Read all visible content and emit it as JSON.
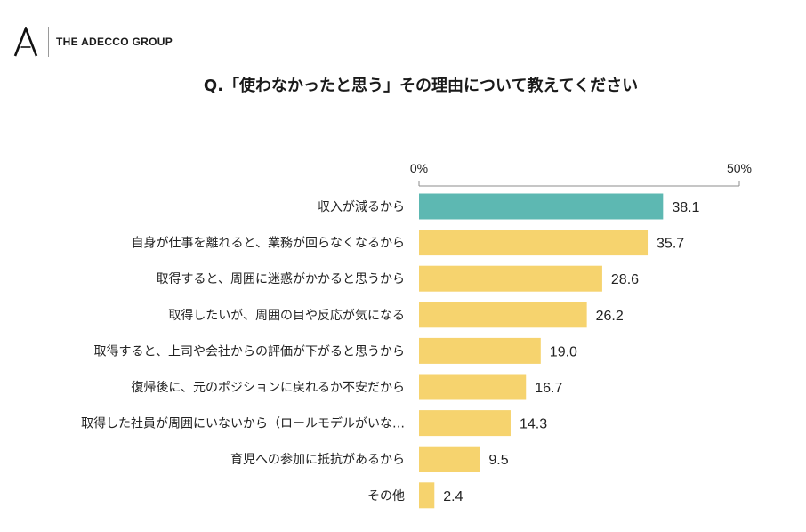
{
  "brand": {
    "name": "THE ADECCO GROUP",
    "logo_icon": "adecco-a-logo-icon"
  },
  "chart_data": {
    "type": "bar",
    "orientation": "horizontal",
    "title": "Q.「使わなかったと思う」その理由について教えてください",
    "categories": [
      "収入が減るから",
      "自身が仕事を離れると、業務が回らなくなるから",
      "取得すると、周囲に迷惑がかかると思うから",
      "取得したいが、周囲の目や反応が気になる",
      "取得すると、上司や会社からの評価が下がると思うから",
      "復帰後に、元のポジションに戻れるか不安だから",
      "取得した社員が周囲にいないから（ロールモデルがいな…",
      "育児への参加に抵抗があるから",
      "その他"
    ],
    "values": [
      38.1,
      35.7,
      28.6,
      26.2,
      19.0,
      16.7,
      14.3,
      9.5,
      2.4
    ],
    "value_labels": [
      "38.1",
      "35.7",
      "28.6",
      "26.2",
      "19.0",
      "16.7",
      "14.3",
      "9.5",
      "2.4"
    ],
    "xlim": [
      0,
      50
    ],
    "tick_labels": [
      "0%",
      "50%"
    ],
    "grid": false,
    "highlight_color": "#5db8b2",
    "bar_color": "#f6d36e"
  }
}
